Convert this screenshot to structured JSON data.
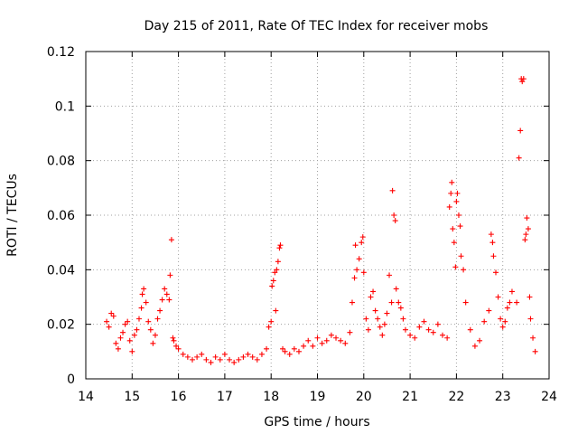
{
  "chart_data": {
    "type": "scatter",
    "title": "Day 215 of 2011, Rate Of TEC Index for receiver mobs",
    "xlabel": "GPS time / hours",
    "ylabel": "ROTI / TECUs",
    "xlim": [
      14,
      24
    ],
    "ylim": [
      0,
      0.12
    ],
    "x_ticks": [
      14,
      15,
      16,
      17,
      18,
      19,
      20,
      21,
      22,
      23,
      24
    ],
    "x_tick_labels": [
      "14",
      "15",
      "16",
      "17",
      "18",
      "19",
      "20",
      "21",
      "22",
      "23",
      "24"
    ],
    "y_ticks": [
      0,
      0.02,
      0.04,
      0.06,
      0.08,
      0.1,
      0.12
    ],
    "y_tick_labels": [
      "0",
      "0.02",
      "0.04",
      "0.06",
      "0.08",
      "0.1",
      "0.12"
    ],
    "grid": true,
    "marker": "+",
    "color": "#ff0000",
    "series": [
      {
        "name": "ROTI",
        "points": [
          [
            14.45,
            0.021
          ],
          [
            14.5,
            0.019
          ],
          [
            14.55,
            0.024
          ],
          [
            14.6,
            0.023
          ],
          [
            14.65,
            0.013
          ],
          [
            14.7,
            0.011
          ],
          [
            14.75,
            0.015
          ],
          [
            14.8,
            0.017
          ],
          [
            14.85,
            0.02
          ],
          [
            14.9,
            0.021
          ],
          [
            14.95,
            0.014
          ],
          [
            15.0,
            0.01
          ],
          [
            15.05,
            0.016
          ],
          [
            15.1,
            0.018
          ],
          [
            15.15,
            0.022
          ],
          [
            15.2,
            0.026
          ],
          [
            15.22,
            0.031
          ],
          [
            15.25,
            0.033
          ],
          [
            15.3,
            0.028
          ],
          [
            15.35,
            0.021
          ],
          [
            15.4,
            0.018
          ],
          [
            15.45,
            0.013
          ],
          [
            15.5,
            0.016
          ],
          [
            15.55,
            0.022
          ],
          [
            15.6,
            0.025
          ],
          [
            15.65,
            0.029
          ],
          [
            15.7,
            0.033
          ],
          [
            15.75,
            0.031
          ],
          [
            15.8,
            0.029
          ],
          [
            15.82,
            0.038
          ],
          [
            15.85,
            0.051
          ],
          [
            15.88,
            0.015
          ],
          [
            15.9,
            0.014
          ],
          [
            15.95,
            0.012
          ],
          [
            16.0,
            0.011
          ],
          [
            16.1,
            0.009
          ],
          [
            16.2,
            0.008
          ],
          [
            16.3,
            0.007
          ],
          [
            16.4,
            0.008
          ],
          [
            16.5,
            0.009
          ],
          [
            16.6,
            0.007
          ],
          [
            16.7,
            0.006
          ],
          [
            16.8,
            0.008
          ],
          [
            16.9,
            0.007
          ],
          [
            17.0,
            0.009
          ],
          [
            17.1,
            0.007
          ],
          [
            17.2,
            0.006
          ],
          [
            17.3,
            0.007
          ],
          [
            17.4,
            0.008
          ],
          [
            17.5,
            0.009
          ],
          [
            17.6,
            0.008
          ],
          [
            17.7,
            0.007
          ],
          [
            17.8,
            0.009
          ],
          [
            17.9,
            0.011
          ],
          [
            17.95,
            0.019
          ],
          [
            18.0,
            0.021
          ],
          [
            18.02,
            0.034
          ],
          [
            18.05,
            0.036
          ],
          [
            18.08,
            0.039
          ],
          [
            18.1,
            0.025
          ],
          [
            18.12,
            0.04
          ],
          [
            18.15,
            0.043
          ],
          [
            18.18,
            0.048
          ],
          [
            18.2,
            0.049
          ],
          [
            18.25,
            0.011
          ],
          [
            18.3,
            0.01
          ],
          [
            18.4,
            0.009
          ],
          [
            18.5,
            0.011
          ],
          [
            18.6,
            0.01
          ],
          [
            18.7,
            0.012
          ],
          [
            18.8,
            0.014
          ],
          [
            18.9,
            0.012
          ],
          [
            19.0,
            0.015
          ],
          [
            19.1,
            0.013
          ],
          [
            19.2,
            0.014
          ],
          [
            19.3,
            0.016
          ],
          [
            19.4,
            0.015
          ],
          [
            19.5,
            0.014
          ],
          [
            19.6,
            0.013
          ],
          [
            19.7,
            0.017
          ],
          [
            19.75,
            0.028
          ],
          [
            19.8,
            0.037
          ],
          [
            19.82,
            0.049
          ],
          [
            19.85,
            0.04
          ],
          [
            19.9,
            0.044
          ],
          [
            19.95,
            0.05
          ],
          [
            19.98,
            0.052
          ],
          [
            20.0,
            0.039
          ],
          [
            20.05,
            0.022
          ],
          [
            20.1,
            0.018
          ],
          [
            20.15,
            0.03
          ],
          [
            20.2,
            0.032
          ],
          [
            20.25,
            0.025
          ],
          [
            20.3,
            0.022
          ],
          [
            20.35,
            0.019
          ],
          [
            20.4,
            0.016
          ],
          [
            20.45,
            0.02
          ],
          [
            20.5,
            0.024
          ],
          [
            20.55,
            0.038
          ],
          [
            20.6,
            0.028
          ],
          [
            20.62,
            0.069
          ],
          [
            20.65,
            0.06
          ],
          [
            20.68,
            0.058
          ],
          [
            20.7,
            0.033
          ],
          [
            20.75,
            0.028
          ],
          [
            20.8,
            0.026
          ],
          [
            20.85,
            0.022
          ],
          [
            20.9,
            0.018
          ],
          [
            21.0,
            0.016
          ],
          [
            21.1,
            0.015
          ],
          [
            21.2,
            0.019
          ],
          [
            21.3,
            0.021
          ],
          [
            21.4,
            0.018
          ],
          [
            21.5,
            0.017
          ],
          [
            21.6,
            0.02
          ],
          [
            21.7,
            0.016
          ],
          [
            21.8,
            0.015
          ],
          [
            21.85,
            0.063
          ],
          [
            21.88,
            0.068
          ],
          [
            21.9,
            0.072
          ],
          [
            21.92,
            0.055
          ],
          [
            21.95,
            0.05
          ],
          [
            21.98,
            0.041
          ],
          [
            22.0,
            0.065
          ],
          [
            22.02,
            0.068
          ],
          [
            22.05,
            0.06
          ],
          [
            22.08,
            0.056
          ],
          [
            22.1,
            0.045
          ],
          [
            22.15,
            0.04
          ],
          [
            22.2,
            0.028
          ],
          [
            22.3,
            0.018
          ],
          [
            22.4,
            0.012
          ],
          [
            22.5,
            0.014
          ],
          [
            22.6,
            0.021
          ],
          [
            22.7,
            0.025
          ],
          [
            22.75,
            0.053
          ],
          [
            22.78,
            0.05
          ],
          [
            22.8,
            0.045
          ],
          [
            22.85,
            0.039
          ],
          [
            22.9,
            0.03
          ],
          [
            22.95,
            0.022
          ],
          [
            23.0,
            0.019
          ],
          [
            23.05,
            0.021
          ],
          [
            23.1,
            0.026
          ],
          [
            23.15,
            0.028
          ],
          [
            23.2,
            0.032
          ],
          [
            23.3,
            0.028
          ],
          [
            23.35,
            0.081
          ],
          [
            23.38,
            0.091
          ],
          [
            23.4,
            0.11
          ],
          [
            23.42,
            0.109
          ],
          [
            23.45,
            0.11
          ],
          [
            23.48,
            0.051
          ],
          [
            23.5,
            0.053
          ],
          [
            23.52,
            0.059
          ],
          [
            23.55,
            0.055
          ],
          [
            23.58,
            0.03
          ],
          [
            23.6,
            0.022
          ],
          [
            23.65,
            0.015
          ],
          [
            23.7,
            0.01
          ]
        ]
      }
    ]
  }
}
